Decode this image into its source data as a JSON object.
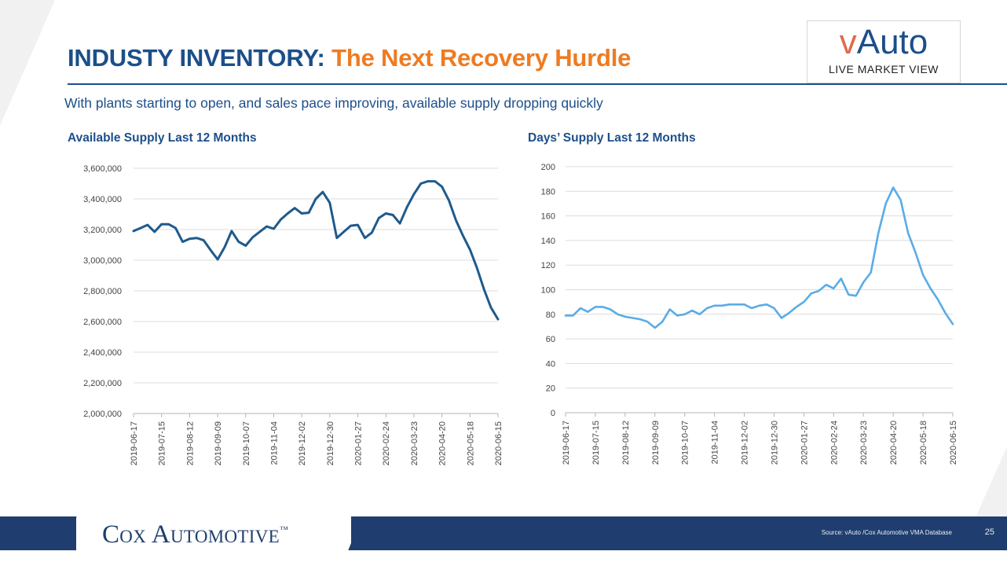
{
  "slide": {
    "title_main": "INDUSTY INVENTORY:",
    "title_accent": "The Next Recovery Hurdle",
    "subtitle": "With plants starting to open, and sales pace improving, available supply dropping quickly",
    "logo_main": "Auto",
    "logo_v": "v",
    "logo_sub": "LIVE MARKET VIEW",
    "brand": "Cox Automotive",
    "brand_tm": "™",
    "source": "Source:  vAuto /Cox Automotive VMA Database",
    "page_number": "25"
  },
  "chart_data": [
    {
      "type": "line",
      "title": "Available Supply Last 12 Months",
      "color": "#1f5a8c",
      "ylim": [
        2000000,
        3600000
      ],
      "yticks": [
        2000000,
        2200000,
        2400000,
        2600000,
        2800000,
        3000000,
        3200000,
        3400000,
        3600000
      ],
      "ytick_labels": [
        "2,000,000",
        "2,200,000",
        "2,400,000",
        "2,600,000",
        "2,800,000",
        "3,000,000",
        "3,200,000",
        "3,400,000",
        "3,600,000"
      ],
      "xtick_labels": [
        "2019-06-17",
        "2019-07-15",
        "2019-08-12",
        "2019-09-09",
        "2019-10-07",
        "2019-11-04",
        "2019-12-02",
        "2019-12-30",
        "2020-01-27",
        "2020-02-24",
        "2020-03-23",
        "2020-04-20",
        "2020-05-18",
        "2020-06-15"
      ],
      "series": [
        {
          "values": [
            3190000,
            3210000,
            3230000,
            3185000,
            3235000,
            3235000,
            3210000,
            3120000,
            3140000,
            3145000,
            3130000,
            3065000,
            3005000,
            3085000,
            3190000,
            3120000,
            3095000,
            3150000,
            3185000,
            3220000,
            3205000,
            3265000,
            3305000,
            3340000,
            3305000,
            3310000,
            3400000,
            3445000,
            3375000,
            3145000,
            3185000,
            3225000,
            3230000,
            3145000,
            3180000,
            3275000,
            3305000,
            3295000,
            3240000,
            3345000,
            3430000,
            3500000,
            3515000,
            3515000,
            3480000,
            3390000,
            3260000,
            3160000,
            3070000,
            2950000,
            2810000,
            2690000,
            2615000
          ]
        }
      ]
    },
    {
      "type": "line",
      "title": "Days’ Supply Last 12 Months",
      "color": "#5aace6",
      "ylim": [
        0,
        200
      ],
      "yticks": [
        0,
        20,
        40,
        60,
        80,
        100,
        120,
        140,
        160,
        180,
        200
      ],
      "ytick_labels": [
        "0",
        "20",
        "40",
        "60",
        "80",
        "100",
        "120",
        "140",
        "160",
        "180",
        "200"
      ],
      "xtick_labels": [
        "2019-06-17",
        "2019-07-15",
        "2019-08-12",
        "2019-09-09",
        "2019-10-07",
        "2019-11-04",
        "2019-12-02",
        "2019-12-30",
        "2020-01-27",
        "2020-02-24",
        "2020-03-23",
        "2020-04-20",
        "2020-05-18",
        "2020-06-15"
      ],
      "series": [
        {
          "values": [
            79,
            79,
            85,
            82,
            86,
            86,
            84,
            80,
            78,
            77,
            76,
            74,
            69,
            74,
            84,
            79,
            80,
            83,
            80,
            85,
            87,
            87,
            88,
            88,
            88,
            85,
            87,
            88,
            85,
            77,
            81,
            86,
            90,
            97,
            99,
            104,
            101,
            109,
            96,
            95,
            106,
            114,
            146,
            170,
            183,
            173,
            146,
            130,
            112,
            101,
            92,
            81,
            72
          ]
        }
      ]
    }
  ]
}
